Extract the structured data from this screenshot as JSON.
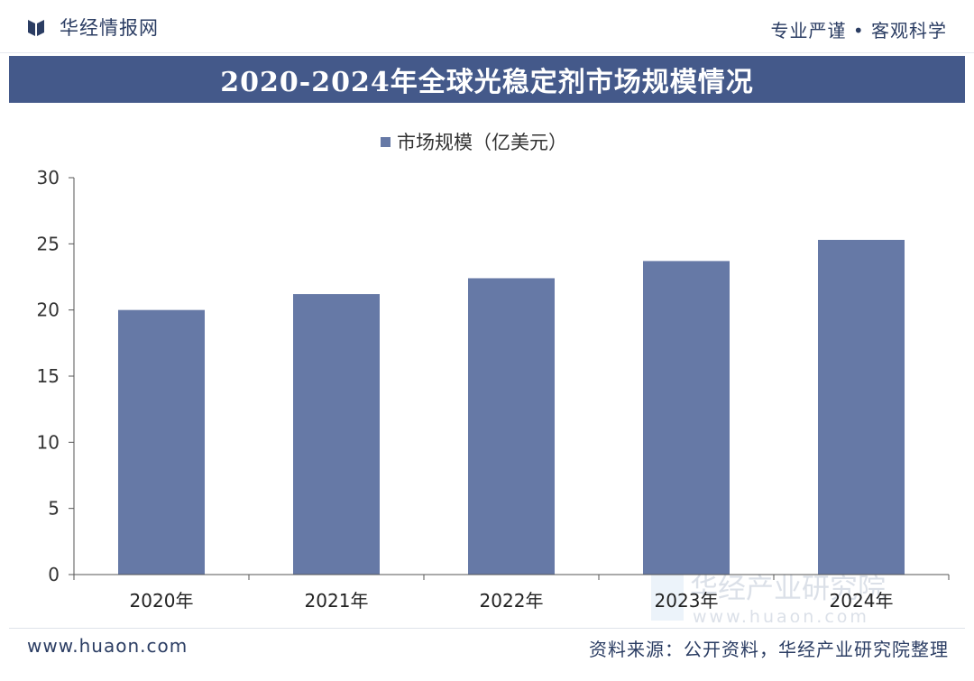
{
  "header": {
    "brand_name": "华经情报网",
    "slogan": "专业严谨 • 客观科学"
  },
  "title": "2020-2024年全球光稳定剂市场规模情况",
  "footer": {
    "website": "www.huaon.com",
    "source": "资料来源：公开资料，华经产业研究院整理"
  },
  "watermark": {
    "text": "华经产业研究院",
    "url": "www.huaon.com"
  },
  "colors": {
    "bar": "#6679a6",
    "banner": "#44598a",
    "text": "#2b3d63"
  },
  "chart_data": {
    "type": "bar",
    "categories": [
      "2020年",
      "2021年",
      "2022年",
      "2023年",
      "2024年"
    ],
    "series": [
      {
        "name": "市场规模（亿美元）",
        "values": [
          20.0,
          21.2,
          22.4,
          23.7,
          25.3
        ]
      }
    ],
    "yticks": [
      "0",
      "5",
      "10",
      "15",
      "20",
      "25",
      "30"
    ],
    "ylim": [
      0,
      30
    ],
    "legend": "top-center",
    "grid": false
  }
}
